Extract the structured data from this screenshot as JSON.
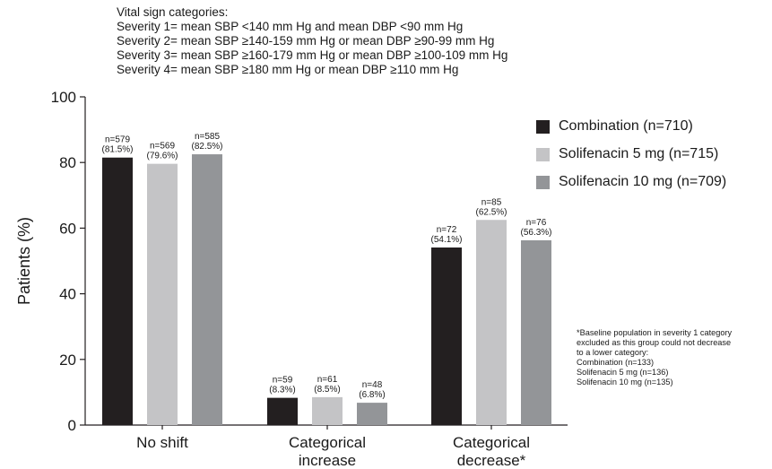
{
  "header": {
    "lines": [
      "Vital sign categories:",
      "Severity 1= mean SBP <140 mm Hg and mean DBP <90 mm Hg",
      "Severity 2= mean SBP ≥140-159 mm Hg or mean DBP ≥90-99 mm Hg",
      "Severity 3= mean SBP ≥160-179 mm Hg or mean DBP ≥100-109 mm Hg",
      "Severity 4= mean SBP ≥180 mm Hg or mean DBP ≥110 mm Hg"
    ]
  },
  "footnote": {
    "lines": [
      "*Baseline population in severity 1 category",
      "excluded as this group could not decrease",
      "to a lower category:",
      "Combination (n=133)",
      "Solifenacin 5 mg (n=136)",
      "Solifenacin 10 mg (n=135)"
    ]
  },
  "chart_data": {
    "type": "bar",
    "title": "",
    "xlabel": "",
    "ylabel": "Patients (%)",
    "ylim": [
      0,
      100
    ],
    "yticks": [
      0,
      20,
      40,
      60,
      80,
      100
    ],
    "grid": false,
    "legend_position": "top-right",
    "categories": [
      [
        "No shift"
      ],
      [
        "Categorical",
        "increase"
      ],
      [
        "Categorical",
        "decrease*"
      ]
    ],
    "series": [
      {
        "name": "Combination (n=710)",
        "color": "#231f20",
        "values": [
          81.5,
          8.3,
          54.1
        ],
        "labels": [
          [
            "n=579",
            "(81.5%)"
          ],
          [
            "n=59",
            "(8.3%)"
          ],
          [
            "n=72",
            "(54.1%)"
          ]
        ]
      },
      {
        "name": "Solifenacin 5 mg (n=715)",
        "color": "#c4c4c6",
        "values": [
          79.6,
          8.5,
          62.5
        ],
        "labels": [
          [
            "n=569",
            "(79.6%)"
          ],
          [
            "n=61",
            "(8.5%)"
          ],
          [
            "n=85",
            "(62.5%)"
          ]
        ]
      },
      {
        "name": "Solifenacin 10 mg (n=709)",
        "color": "#939598",
        "values": [
          82.5,
          6.8,
          56.3
        ],
        "labels": [
          [
            "n=585",
            "(82.5%)"
          ],
          [
            "n=48",
            "(6.8%)"
          ],
          [
            "n=76",
            "(56.3%)"
          ]
        ]
      }
    ]
  }
}
